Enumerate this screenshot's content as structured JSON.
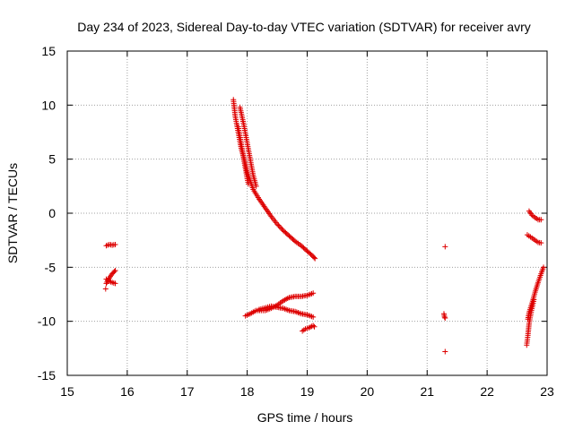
{
  "chart_data": {
    "type": "scatter",
    "title": "Day 234 of 2023, Sidereal Day-to-day VTEC variation (SDTVAR) for receiver avry",
    "xlabel": "GPS time / hours",
    "ylabel": "SDTVAR / TECUs",
    "xlim": [
      15,
      23
    ],
    "ylim": [
      -15,
      15
    ],
    "xticks": [
      15,
      16,
      17,
      18,
      19,
      20,
      21,
      22,
      23
    ],
    "yticks": [
      -15,
      -10,
      -5,
      0,
      5,
      10,
      15
    ],
    "grid": true,
    "marker": "+",
    "color": "#dd0000",
    "series": [
      {
        "name": "upper-arc",
        "segments": [
          [
            [
              17.77,
              10.5
            ],
            [
              17.8,
              9.0
            ],
            [
              17.85,
              7.5
            ],
            [
              17.9,
              6.0
            ],
            [
              17.95,
              5.0
            ],
            [
              18.0,
              3.8
            ],
            [
              18.05,
              3.0
            ],
            [
              18.1,
              2.2
            ],
            [
              18.2,
              1.3
            ],
            [
              18.3,
              0.5
            ],
            [
              18.4,
              -0.3
            ],
            [
              18.5,
              -1.0
            ],
            [
              18.6,
              -1.6
            ],
            [
              18.7,
              -2.1
            ],
            [
              18.8,
              -2.6
            ],
            [
              18.9,
              -3.0
            ],
            [
              19.0,
              -3.5
            ],
            [
              19.1,
              -4.0
            ],
            [
              19.13,
              -4.2
            ]
          ],
          [
            [
              17.88,
              9.8
            ],
            [
              17.95,
              8.0
            ],
            [
              18.0,
              6.5
            ],
            [
              18.05,
              5.0
            ],
            [
              18.1,
              3.5
            ],
            [
              18.15,
              2.5
            ]
          ],
          [
            [
              17.85,
              8.0
            ],
            [
              17.9,
              6.5
            ],
            [
              17.95,
              4.8
            ],
            [
              18.0,
              3.2
            ],
            [
              18.02,
              2.7
            ]
          ]
        ]
      },
      {
        "name": "lower-arc",
        "segments": [
          [
            [
              17.97,
              -9.5
            ],
            [
              18.05,
              -9.3
            ],
            [
              18.15,
              -9.0
            ],
            [
              18.3,
              -9.0
            ],
            [
              18.4,
              -8.8
            ],
            [
              18.5,
              -8.5
            ],
            [
              18.6,
              -8.1
            ],
            [
              18.7,
              -7.8
            ],
            [
              18.8,
              -7.7
            ],
            [
              18.9,
              -7.7
            ],
            [
              19.0,
              -7.6
            ],
            [
              19.1,
              -7.4
            ]
          ],
          [
            [
              18.2,
              -8.9
            ],
            [
              18.4,
              -8.6
            ],
            [
              18.5,
              -8.7
            ],
            [
              18.6,
              -8.8
            ],
            [
              18.7,
              -9.0
            ],
            [
              18.8,
              -9.1
            ],
            [
              18.9,
              -9.3
            ],
            [
              19.0,
              -9.4
            ],
            [
              19.1,
              -9.6
            ]
          ],
          [
            [
              18.92,
              -10.9
            ],
            [
              18.97,
              -10.7
            ],
            [
              19.03,
              -10.6
            ],
            [
              19.1,
              -10.4
            ],
            [
              19.12,
              -10.5
            ]
          ]
        ]
      },
      {
        "name": "early-group",
        "segments": [
          [
            [
              15.65,
              -3.0
            ],
            [
              15.7,
              -2.9
            ],
            [
              15.75,
              -2.95
            ],
            [
              15.8,
              -2.9
            ]
          ],
          [
            [
              15.65,
              -6.5
            ],
            [
              15.7,
              -6.0
            ],
            [
              15.75,
              -5.6
            ],
            [
              15.8,
              -5.3
            ]
          ],
          [
            [
              15.65,
              -6.1
            ],
            [
              15.7,
              -6.3
            ],
            [
              15.75,
              -6.4
            ],
            [
              15.8,
              -6.5
            ]
          ],
          [
            [
              15.64,
              -7.0
            ]
          ]
        ]
      },
      {
        "name": "isolated-points",
        "segments": [
          [
            [
              21.3,
              -3.1
            ]
          ],
          [
            [
              21.28,
              -9.3
            ],
            [
              21.29,
              -9.6
            ],
            [
              21.3,
              -9.7
            ]
          ],
          [
            [
              21.3,
              -12.8
            ]
          ]
        ]
      },
      {
        "name": "late-group",
        "segments": [
          [
            [
              22.7,
              0.2
            ],
            [
              22.75,
              -0.2
            ],
            [
              22.8,
              -0.4
            ],
            [
              22.85,
              -0.6
            ],
            [
              22.9,
              -0.6
            ]
          ],
          [
            [
              22.67,
              -2.0
            ],
            [
              22.75,
              -2.3
            ],
            [
              22.8,
              -2.5
            ],
            [
              22.85,
              -2.7
            ],
            [
              22.9,
              -2.75
            ]
          ],
          [
            [
              22.68,
              -9.8
            ],
            [
              22.7,
              -9.2
            ],
            [
              22.75,
              -8.3
            ],
            [
              22.8,
              -7.3
            ],
            [
              22.85,
              -6.4
            ],
            [
              22.9,
              -5.6
            ],
            [
              22.94,
              -5.0
            ]
          ],
          [
            [
              22.66,
              -12.2
            ],
            [
              22.68,
              -11.3
            ],
            [
              22.7,
              -10.2
            ],
            [
              22.74,
              -9.0
            ],
            [
              22.78,
              -8.0
            ]
          ]
        ]
      }
    ]
  }
}
